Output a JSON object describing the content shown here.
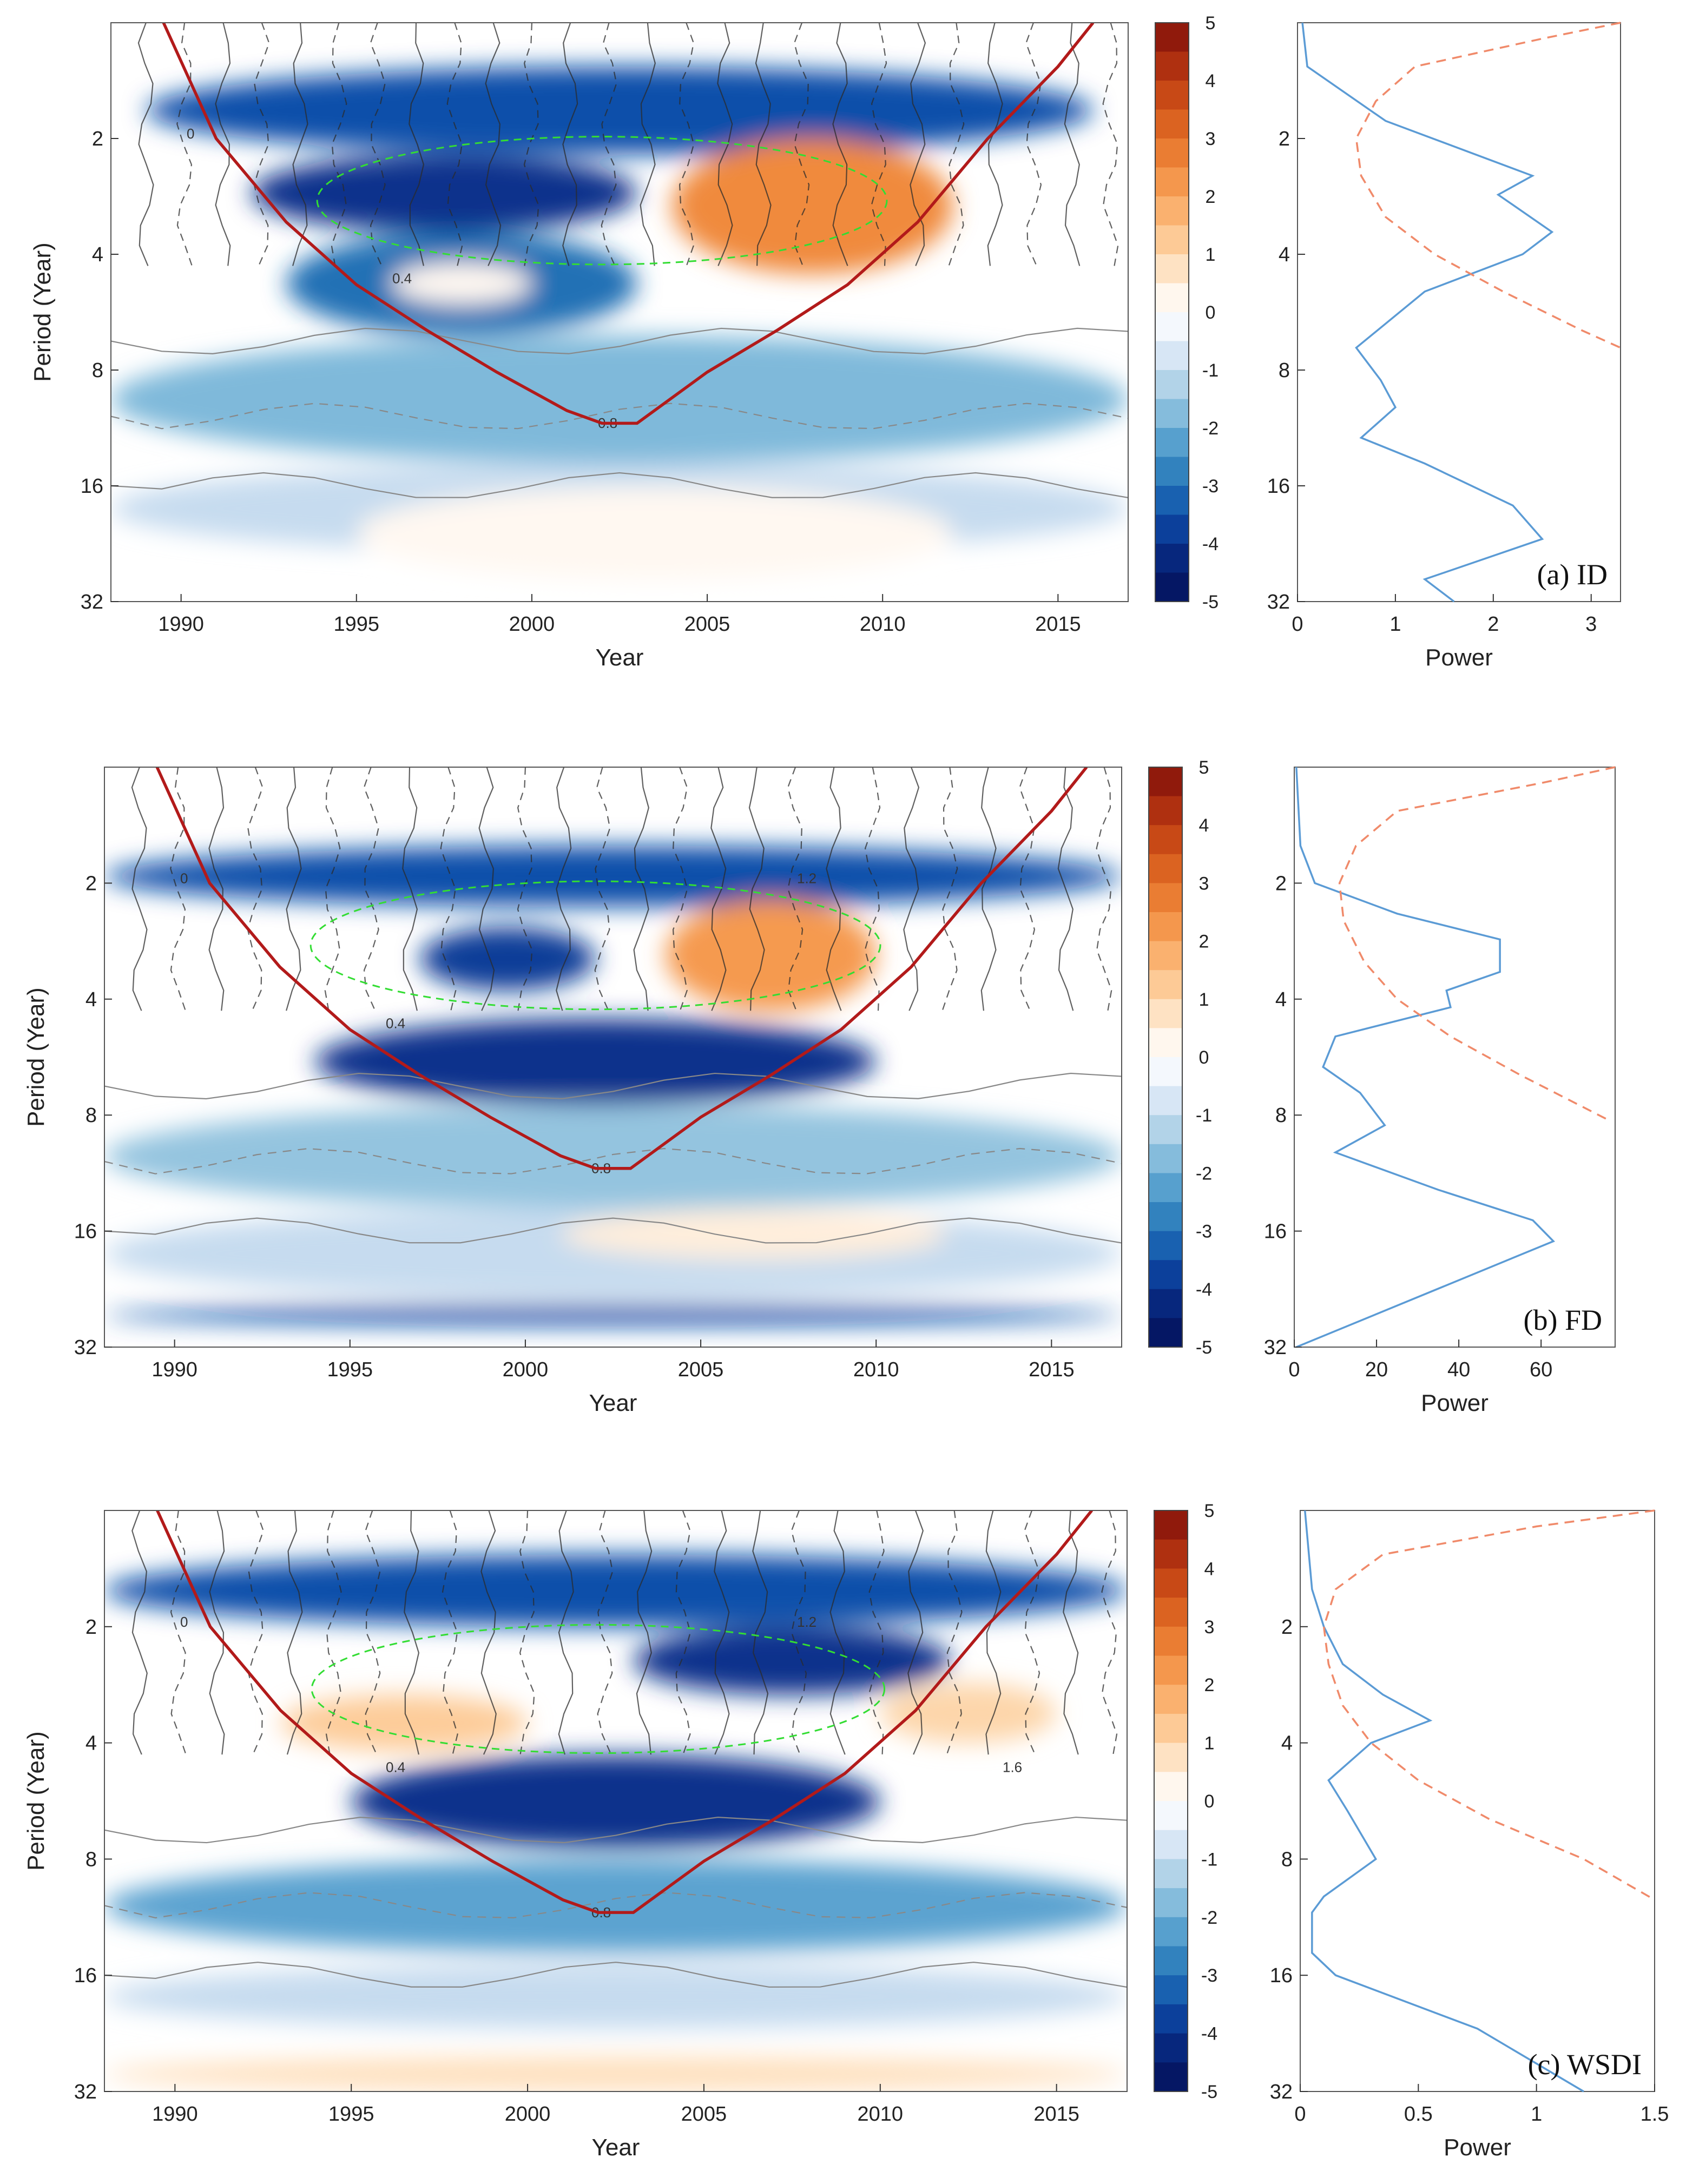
{
  "chart_data": [
    {
      "type": "heatmap",
      "panel_label": "(a) ID",
      "title": "",
      "wavelet": {
        "xlabel": "Year",
        "ylabel": "Period (Year)",
        "xlim": [
          1988,
          2017
        ],
        "xticks": [
          1990,
          1995,
          2000,
          2005,
          2010,
          2015
        ],
        "yticks": [
          2,
          4,
          8,
          16,
          32
        ],
        "ylim": [
          1,
          32
        ],
        "colorbar": {
          "min": -5,
          "max": 5,
          "ticks": [
            5,
            4,
            3,
            2,
            1,
            0,
            -1,
            -2,
            -3,
            -4,
            -5
          ]
        },
        "cone_of_influence": {
          "x": [
            1989.5,
            1991,
            1993,
            1995,
            1997,
            1999,
            2001,
            2002,
            2003,
            2005,
            2007,
            2009,
            2011,
            2013,
            2015,
            2016
          ],
          "period": [
            1,
            2.0,
            3.3,
            4.8,
            6.3,
            8.1,
            10.2,
            11.0,
            11.0,
            8.1,
            6.3,
            4.8,
            3.3,
            2.0,
            1.3,
            1.0
          ]
        },
        "contour_labels": [
          "0",
          "0.4",
          "0.8"
        ],
        "blobs": [
          {
            "value": -3.5,
            "x0": 1989,
            "x1": 2016,
            "p0": 1.3,
            "p1": 2.2
          },
          {
            "value": -4,
            "x0": 1992,
            "x1": 2003,
            "p0": 2.2,
            "p1": 3.5
          },
          {
            "value": -3,
            "x0": 1993,
            "x1": 2003,
            "p0": 3.5,
            "p1": 6.5
          },
          {
            "value": 2.5,
            "x0": 2004,
            "x1": 2012,
            "p0": 2.0,
            "p1": 4.5
          },
          {
            "value": -1.8,
            "x0": 1988,
            "x1": 2017,
            "p0": 6.5,
            "p1": 14
          },
          {
            "value": -1,
            "x0": 1988,
            "x1": 2017,
            "p0": 14,
            "p1": 24
          },
          {
            "value": 0.2,
            "x0": 1995,
            "x1": 2012,
            "p0": 16,
            "p1": 28
          },
          {
            "value": 0.2,
            "x0": 1996,
            "x1": 2000,
            "p0": 4.2,
            "p1": 5.4
          }
        ]
      },
      "global_power": {
        "xlabel": "Power",
        "xlim": [
          0,
          3.3
        ],
        "xticks": [
          0,
          1,
          2,
          3
        ],
        "period": [
          1.0,
          1.3,
          1.8,
          2.5,
          2.8,
          3.5,
          4.0,
          5.0,
          7.0,
          8.5,
          10.0,
          12.0,
          14.0,
          18.0,
          22.0,
          28.0,
          32.0
        ],
        "power": [
          0.05,
          0.1,
          0.9,
          2.4,
          2.05,
          2.6,
          2.3,
          1.3,
          0.6,
          0.85,
          1.0,
          0.65,
          1.3,
          2.2,
          2.5,
          1.3,
          1.6
        ],
        "significance_period": [
          1.0,
          1.1,
          1.3,
          1.6,
          2.0,
          2.5,
          3.2,
          4.0,
          5.0,
          6.3,
          7.0
        ],
        "significance_power": [
          3.3,
          2.5,
          1.2,
          0.8,
          0.6,
          0.65,
          0.9,
          1.4,
          2.1,
          2.9,
          3.3
        ]
      }
    },
    {
      "type": "heatmap",
      "panel_label": "(b) FD",
      "title": "",
      "wavelet": {
        "xlabel": "Year",
        "ylabel": "Period (Year)",
        "xlim": [
          1988,
          2017
        ],
        "xticks": [
          1990,
          1995,
          2000,
          2005,
          2010,
          2015
        ],
        "yticks": [
          2,
          4,
          8,
          16,
          32
        ],
        "ylim": [
          1,
          32
        ],
        "colorbar": {
          "min": -5,
          "max": 5,
          "ticks": [
            5,
            4,
            3,
            2,
            1,
            0,
            -1,
            -2,
            -3,
            -4,
            -5
          ]
        },
        "cone_of_influence": {
          "x": [
            1989.5,
            1991,
            1993,
            1995,
            1997,
            1999,
            2001,
            2002,
            2003,
            2005,
            2007,
            2009,
            2011,
            2013,
            2015,
            2016
          ],
          "period": [
            1,
            2.0,
            3.3,
            4.8,
            6.3,
            8.1,
            10.2,
            11.0,
            11.0,
            8.1,
            6.3,
            4.8,
            3.3,
            2.0,
            1.3,
            1.0
          ]
        },
        "contour_labels": [
          "0",
          "0.4",
          "0.8",
          "1.2"
        ],
        "blobs": [
          {
            "value": -3.5,
            "x0": 1988,
            "x1": 2017,
            "p0": 1.6,
            "p1": 2.3
          },
          {
            "value": -3.8,
            "x0": 1997,
            "x1": 2002,
            "p0": 2.6,
            "p1": 3.8
          },
          {
            "value": -4,
            "x0": 1994,
            "x1": 2010,
            "p0": 4.5,
            "p1": 7.5
          },
          {
            "value": 2.2,
            "x0": 2004,
            "x1": 2010,
            "p0": 2.2,
            "p1": 4.3
          },
          {
            "value": -1.6,
            "x0": 1988,
            "x1": 2017,
            "p0": 7.5,
            "p1": 14
          },
          {
            "value": -1,
            "x0": 1988,
            "x1": 2017,
            "p0": 14,
            "p1": 24
          },
          {
            "value": 0.5,
            "x0": 2001,
            "x1": 2012,
            "p0": 14,
            "p1": 19
          },
          {
            "value": -3.5,
            "x0": 1988,
            "x1": 2017,
            "p0": 25,
            "p1": 28
          }
        ]
      },
      "global_power": {
        "xlabel": "Power",
        "xlim": [
          0,
          78
        ],
        "xticks": [
          0,
          20,
          40,
          60
        ],
        "period": [
          1.0,
          1.6,
          2.0,
          2.4,
          2.8,
          3.4,
          3.8,
          4.2,
          5.0,
          6.0,
          7.0,
          8.5,
          10.0,
          12.5,
          15.0,
          17.0,
          32.0
        ],
        "power": [
          0.5,
          1.5,
          5.0,
          25.0,
          50.0,
          50.0,
          37.0,
          38.0,
          10.0,
          7.0,
          16.0,
          22.0,
          10.0,
          35.0,
          58.0,
          63.0,
          0.5
        ],
        "significance_period": [
          1.0,
          1.1,
          1.3,
          1.6,
          2.0,
          2.5,
          3.2,
          4.0,
          5.0,
          6.3,
          8.2
        ],
        "significance_power": [
          78,
          60,
          25,
          15,
          11,
          12,
          17,
          25,
          38,
          55,
          76
        ]
      }
    },
    {
      "type": "heatmap",
      "panel_label": "(c) WSDI",
      "title": "",
      "wavelet": {
        "xlabel": "Year",
        "ylabel": "Period (Year)",
        "xlim": [
          1988,
          2017
        ],
        "xticks": [
          1990,
          1995,
          2000,
          2005,
          2010,
          2015
        ],
        "yticks": [
          2,
          4,
          8,
          16,
          32
        ],
        "ylim": [
          1,
          32
        ],
        "colorbar": {
          "min": -5,
          "max": 5,
          "ticks": [
            5,
            4,
            3,
            2,
            1,
            0,
            -1,
            -2,
            -3,
            -4,
            -5
          ]
        },
        "cone_of_influence": {
          "x": [
            1989.5,
            1991,
            1993,
            1995,
            1997,
            1999,
            2001,
            2002,
            2003,
            2005,
            2007,
            2009,
            2011,
            2013,
            2015,
            2016
          ],
          "period": [
            1,
            2.0,
            3.3,
            4.8,
            6.3,
            8.1,
            10.2,
            11.0,
            11.0,
            8.1,
            6.3,
            4.8,
            3.3,
            2.0,
            1.3,
            1.0
          ]
        },
        "contour_labels": [
          "0",
          "0.4",
          "0.8",
          "1.2",
          "1.6"
        ],
        "blobs": [
          {
            "value": -3.5,
            "x0": 1988,
            "x1": 2017,
            "p0": 1.3,
            "p1": 2.0
          },
          {
            "value": -4,
            "x0": 2003,
            "x1": 2012,
            "p0": 2.0,
            "p1": 3.0
          },
          {
            "value": 1.2,
            "x0": 1993,
            "x1": 2000,
            "p0": 3.0,
            "p1": 4.2
          },
          {
            "value": 1,
            "x0": 2010,
            "x1": 2015,
            "p0": 2.8,
            "p1": 4.0
          },
          {
            "value": -4,
            "x0": 1995,
            "x1": 2010,
            "p0": 4.3,
            "p1": 7.5
          },
          {
            "value": -2.2,
            "x0": 1988,
            "x1": 2017,
            "p0": 8.0,
            "p1": 14
          },
          {
            "value": -1,
            "x0": 1988,
            "x1": 2017,
            "p0": 15,
            "p1": 22
          },
          {
            "value": 0.8,
            "x0": 1988,
            "x1": 2017,
            "p0": 26,
            "p1": 32
          }
        ]
      },
      "global_power": {
        "xlabel": "Power",
        "xlim": [
          0,
          1.5
        ],
        "xticks": [
          0,
          0.5,
          1,
          1.5
        ],
        "period": [
          1.0,
          1.6,
          2.0,
          2.5,
          3.0,
          3.5,
          4.0,
          5.0,
          6.0,
          8.0,
          10.0,
          11.0,
          14.0,
          16.0,
          22.0,
          32.0
        ],
        "power": [
          0.02,
          0.05,
          0.1,
          0.18,
          0.35,
          0.55,
          0.3,
          0.12,
          0.2,
          0.32,
          0.1,
          0.05,
          0.05,
          0.15,
          0.75,
          1.2
        ],
        "significance_period": [
          1.0,
          1.1,
          1.3,
          1.6,
          2.0,
          2.5,
          3.2,
          4.0,
          5.0,
          6.3,
          8.0,
          10.2
        ],
        "significance_power": [
          1.5,
          1.0,
          0.35,
          0.15,
          0.1,
          0.12,
          0.18,
          0.3,
          0.5,
          0.8,
          1.2,
          1.5
        ]
      }
    }
  ]
}
